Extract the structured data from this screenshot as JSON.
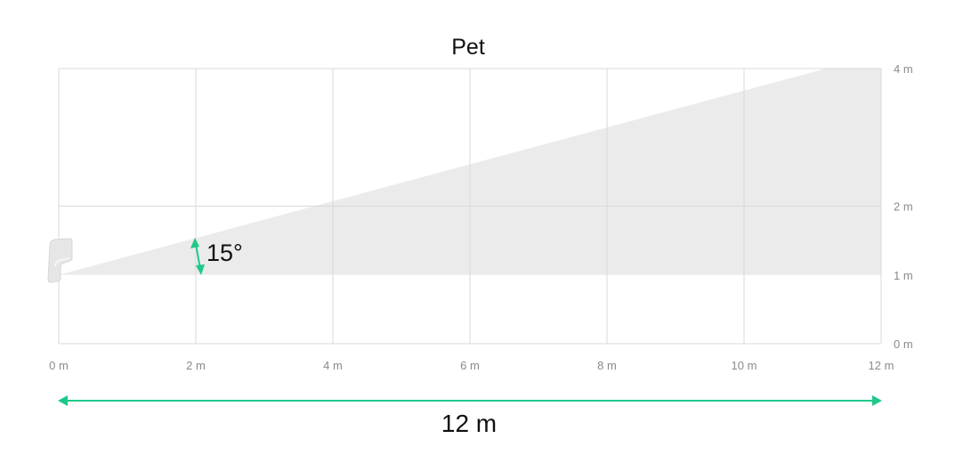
{
  "title": "Pet",
  "x_ticks": [
    "0 m",
    "2 m",
    "4 m",
    "6 m",
    "8 m",
    "10 m",
    "12 m"
  ],
  "y_ticks": [
    "0 m",
    "1 m",
    "2 m",
    "4 m"
  ],
  "angle_label": "15°",
  "distance_label": "12 m",
  "zone": {
    "sensor_height_m": 1,
    "angle_deg": 15,
    "range_m": 12,
    "max_height_m": 4
  },
  "colors": {
    "zone": "#ebebeb",
    "arrow": "#1ec98a",
    "grid": "#d9d9d9"
  },
  "icons": [
    "motion-sensor-icon"
  ]
}
